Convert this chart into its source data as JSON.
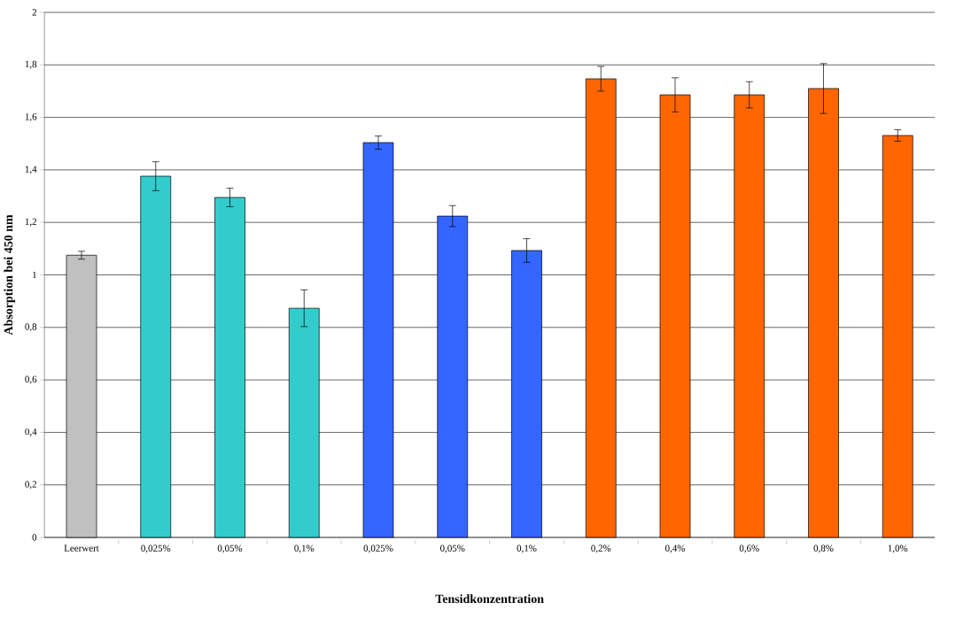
{
  "chart_data": {
    "type": "bar",
    "xlabel": "Tensidkonzentration",
    "ylabel": "Absorption bei 450 nm",
    "categories": [
      "Leerwert",
      "0,025%",
      "0,05%",
      "0,1%",
      "0,025%",
      "0,05%",
      "0,1%",
      "0,2%",
      "0,4%",
      "0,6%",
      "0,8%",
      "1,0%"
    ],
    "values": [
      1.075,
      1.376,
      1.295,
      0.873,
      1.504,
      1.224,
      1.093,
      1.747,
      1.686,
      1.686,
      1.71,
      1.531
    ],
    "errors": [
      0.015,
      0.055,
      0.035,
      0.07,
      0.025,
      0.04,
      0.045,
      0.047,
      0.065,
      0.05,
      0.095,
      0.022
    ],
    "colors": [
      "#c0c0c0",
      "#33cccc",
      "#33cccc",
      "#33cccc",
      "#3366ff",
      "#3366ff",
      "#3366ff",
      "#ff6600",
      "#ff6600",
      "#ff6600",
      "#ff6600",
      "#ff6600"
    ],
    "ylim": [
      0,
      2
    ],
    "yticks": [
      0,
      {
        "value": 0.2,
        "label": "0,2"
      },
      {
        "value": 0.4,
        "label": "0,4"
      },
      {
        "value": 0.6,
        "label": "0,6"
      },
      {
        "value": 0.8,
        "label": "0,8"
      },
      1,
      {
        "value": 1.2,
        "label": "1,2"
      },
      {
        "value": 1.4,
        "label": "1,4"
      },
      {
        "value": 1.6,
        "label": "1,6"
      },
      {
        "value": 1.8,
        "label": "1,8"
      },
      2
    ],
    "grid": "y"
  }
}
